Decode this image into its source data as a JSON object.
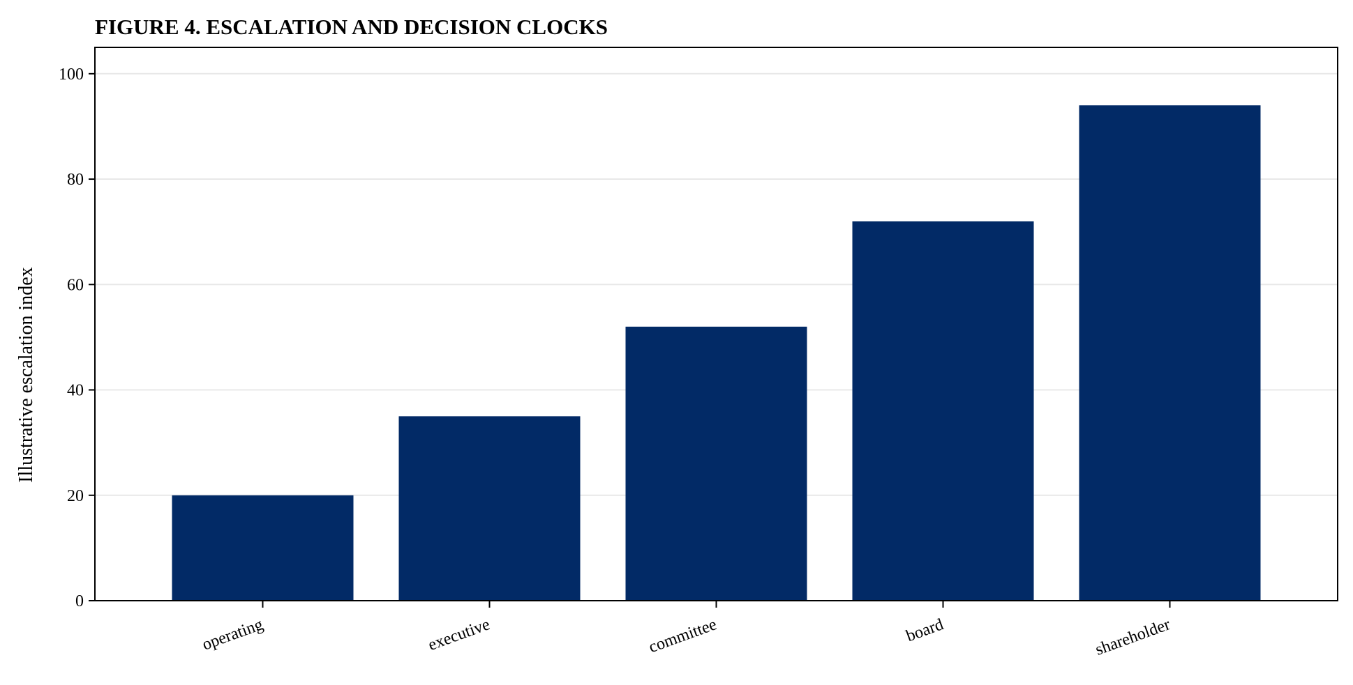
{
  "chart_data": {
    "type": "bar",
    "title": "FIGURE 4. ESCALATION AND DECISION CLOCKS",
    "xlabel": "",
    "ylabel": "Illustrative escalation index",
    "categories": [
      "operating",
      "executive",
      "committee",
      "board",
      "shareholder"
    ],
    "values": [
      20,
      35,
      52,
      72,
      94
    ],
    "ylim": [
      0,
      105
    ],
    "yticks": [
      0,
      20,
      40,
      60,
      80,
      100
    ],
    "ytick_labels": [
      "0",
      "20",
      "40",
      "60",
      "80",
      "100"
    ],
    "grid": true,
    "grid_axis": "y",
    "legend": "none",
    "colors": {
      "bar": "#022a66",
      "grid": "#e8e8e8",
      "axis": "#000000"
    }
  }
}
